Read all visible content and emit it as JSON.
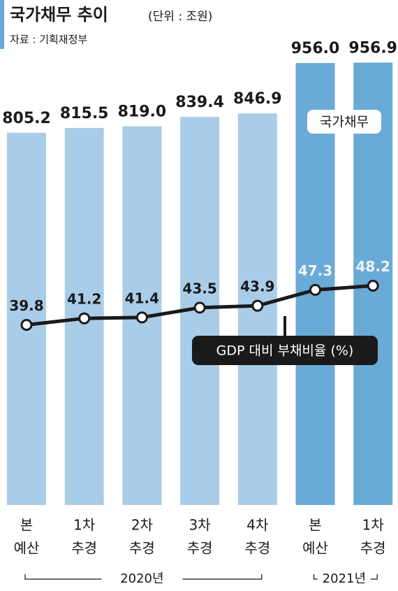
{
  "chart_data": {
    "type": "bar",
    "title": "국가채무 추이",
    "unit": "(단위 : 조원)",
    "source": "자료 : 기획재정부",
    "groups": [
      {
        "name": "2020년",
        "categories": [
          [
            "본",
            "예산"
          ],
          [
            "1차",
            "추경"
          ],
          [
            "2차",
            "추경"
          ],
          [
            "3차",
            "추경"
          ],
          [
            "4차",
            "추경"
          ]
        ]
      },
      {
        "name": "2021년",
        "categories": [
          [
            "본",
            "예산"
          ],
          [
            "1차",
            "추경"
          ]
        ]
      }
    ],
    "series": [
      {
        "name": "국가채무",
        "type": "bar",
        "colors": [
          "#a9cde9",
          "#a9cde9",
          "#a9cde9",
          "#a9cde9",
          "#a9cde9",
          "#6aaad6",
          "#6aaad6"
        ],
        "values": [
          805.2,
          815.5,
          819.0,
          839.4,
          846.9,
          956.0,
          956.9
        ],
        "value_labels": [
          "805.2",
          "815.5",
          "819.0",
          "839.4",
          "846.9",
          "956.0",
          "956.9"
        ]
      },
      {
        "name": "GDP 대비 부채비율 (%)",
        "type": "line",
        "axis": "y2",
        "color": "#1a1a1a",
        "label_colors": [
          "#1a1a1a",
          "#1a1a1a",
          "#1a1a1a",
          "#1a1a1a",
          "#1a1a1a",
          "#f0f4f8",
          "#f0f4f8"
        ],
        "values": [
          39.8,
          41.2,
          41.4,
          43.5,
          43.9,
          47.3,
          48.2
        ]
      }
    ]
  }
}
